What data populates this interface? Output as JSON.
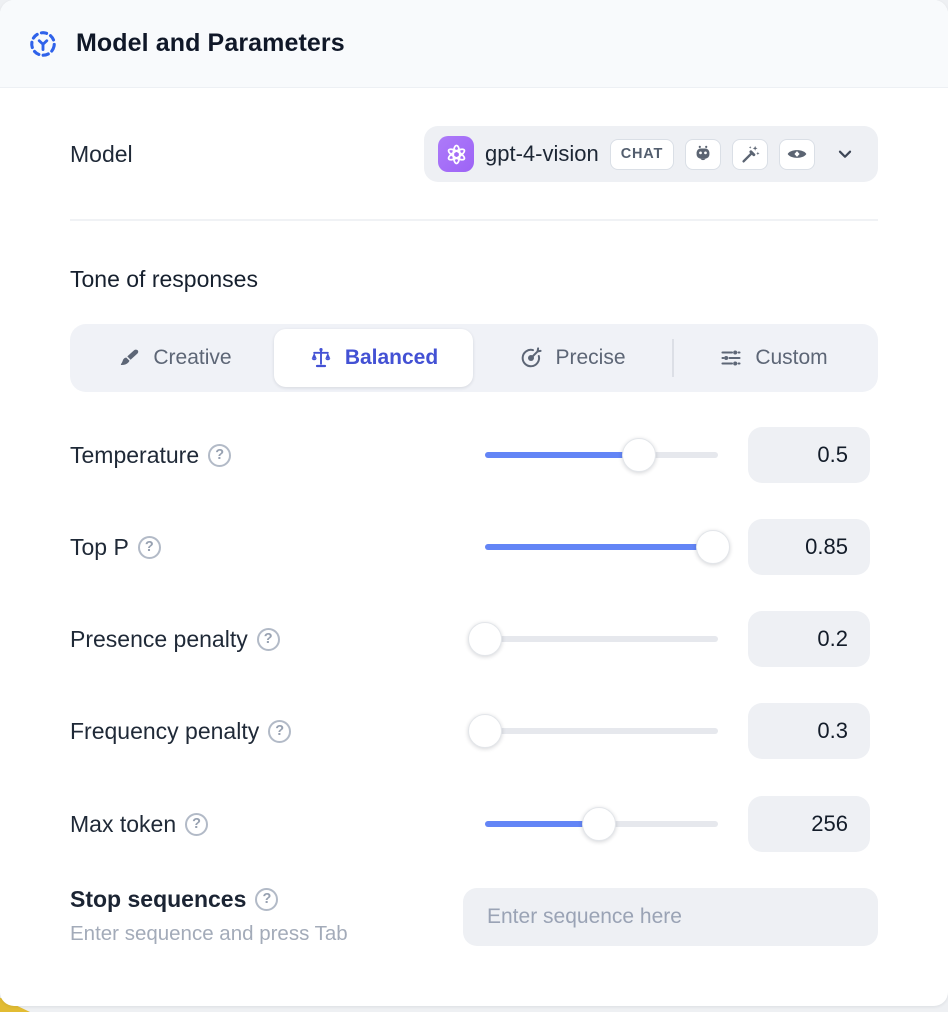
{
  "header": {
    "title": "Model and Parameters"
  },
  "model_row": {
    "label": "Model",
    "model_name": "gpt-4-vision",
    "badge": "CHAT",
    "capability_icons": [
      "bot-icon",
      "magic-wand-icon",
      "vision-eye-icon"
    ],
    "provider_logo": "openai-logo"
  },
  "tone": {
    "heading": "Tone of responses",
    "tabs": [
      {
        "label": "Creative",
        "icon": "paintbrush-icon",
        "selected": false
      },
      {
        "label": "Balanced",
        "icon": "balance-scale-icon",
        "selected": true
      },
      {
        "label": "Precise",
        "icon": "target-dart-icon",
        "selected": false
      },
      {
        "label": "Custom",
        "icon": "sliders-icon",
        "selected": false
      }
    ]
  },
  "params": [
    {
      "label": "Temperature",
      "value": "0.5",
      "fill_pct": 66
    },
    {
      "label": "Top P",
      "value": "0.85",
      "fill_pct": 98
    },
    {
      "label": "Presence penalty",
      "value": "0.2",
      "fill_pct": 0
    },
    {
      "label": "Frequency penalty",
      "value": "0.3",
      "fill_pct": 0
    },
    {
      "label": "Max token",
      "value": "256",
      "fill_pct": 49
    }
  ],
  "stop_sequences": {
    "label": "Stop sequences",
    "hint": "Enter sequence and press Tab",
    "placeholder": "Enter sequence here"
  },
  "icons": {
    "help_glyph": "?"
  },
  "colors": {
    "accent_blue": "#2f62ea",
    "slider_blue": "#6385f6",
    "selected_tab_indigo": "#4351d4",
    "openai_purple": "#9d63f6",
    "panel_gray": "#eef0f4",
    "yellow_corner": "#e2bc33"
  }
}
